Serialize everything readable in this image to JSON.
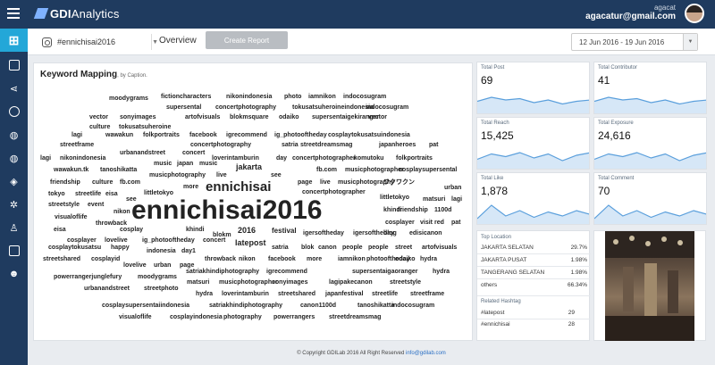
{
  "app": {
    "brand_bold": "GDI",
    "brand_rest": "Analytics"
  },
  "user": {
    "name": "agacat",
    "email": "agacatur@gmail.com"
  },
  "toolbar": {
    "hashtag": "#ennichisai2016",
    "overview": "Overview",
    "create_report": "Create Report",
    "date_range": "12 Jun 2016 - 19 Jun 2016"
  },
  "cloud": {
    "title": "Keyword Mapping",
    "subtitle": "by Caption",
    "words": [
      {
        "t": "moodygrams",
        "s": 7
      },
      {
        "t": "fictioncharacters",
        "s": 7
      },
      {
        "t": "nikonindonesia",
        "s": 7
      },
      {
        "t": "photo",
        "s": 7
      },
      {
        "t": "iamnikon",
        "s": 7
      },
      {
        "t": "indocosugram",
        "s": 7
      },
      {
        "t": "supersental",
        "s": 7
      },
      {
        "t": "concertphotography",
        "s": 7
      },
      {
        "t": "tokusatsuheroineindonesia",
        "s": 7
      },
      {
        "t": "indocosugram",
        "s": 7
      },
      {
        "t": "vector",
        "s": 7
      },
      {
        "t": "sonyimages",
        "s": 7
      },
      {
        "t": "artofvisuals",
        "s": 7
      },
      {
        "t": "blokmsquare",
        "s": 7
      },
      {
        "t": "odaiko",
        "s": 7
      },
      {
        "t": "supersentaigekiranger",
        "s": 7
      },
      {
        "t": "vector",
        "s": 7
      },
      {
        "t": "culture",
        "s": 7
      },
      {
        "t": "tokusatsuheroine",
        "s": 7
      },
      {
        "t": "lagi",
        "s": 7
      },
      {
        "t": "wawakun",
        "s": 7
      },
      {
        "t": "folkportraits",
        "s": 7
      },
      {
        "t": "facebook",
        "s": 7
      },
      {
        "t": "igrecommend",
        "s": 7
      },
      {
        "t": "ig_photooftheday",
        "s": 7
      },
      {
        "t": "cosplaytokusatsuindonesia",
        "s": 7
      },
      {
        "t": "streetframe",
        "s": 7
      },
      {
        "t": "concertphotography",
        "s": 7
      },
      {
        "t": "satria",
        "s": 7
      },
      {
        "t": "streetdreamsmag",
        "s": 7
      },
      {
        "t": "japanheroes",
        "s": 7
      },
      {
        "t": "pat",
        "s": 7
      },
      {
        "t": "urbanandstreet",
        "s": 7
      },
      {
        "t": "concert",
        "s": 7
      },
      {
        "t": "lagi",
        "s": 7
      },
      {
        "t": "nikonindonesia",
        "s": 7
      },
      {
        "t": "loverintamburin",
        "s": 7
      },
      {
        "t": "day",
        "s": 7
      },
      {
        "t": "concertphotographer",
        "s": 7
      },
      {
        "t": "komutoku",
        "s": 7
      },
      {
        "t": "folkportraits",
        "s": 7
      },
      {
        "t": "music",
        "s": 7
      },
      {
        "t": "japan",
        "s": 7
      },
      {
        "t": "music",
        "s": 7
      },
      {
        "t": "wawakun.tk",
        "s": 7
      },
      {
        "t": "tanoshikatta",
        "s": 7
      },
      {
        "t": "jakarta",
        "s": 9
      },
      {
        "t": "fb.com",
        "s": 7
      },
      {
        "t": "musicphotographer",
        "s": 7
      },
      {
        "t": "cosplaysupersental",
        "s": 7
      },
      {
        "t": "musicphotography",
        "s": 7
      },
      {
        "t": "live",
        "s": 7
      },
      {
        "t": "see",
        "s": 7
      },
      {
        "t": "friendship",
        "s": 7
      },
      {
        "t": "culture",
        "s": 7
      },
      {
        "t": "fb.com",
        "s": 7
      },
      {
        "t": "page",
        "s": 7
      },
      {
        "t": "live",
        "s": 7
      },
      {
        "t": "musicphotography",
        "s": 7
      },
      {
        "t": "ワクワクン",
        "s": 7
      },
      {
        "t": "more",
        "s": 7
      },
      {
        "t": "ennichisai",
        "s": 15
      },
      {
        "t": "urban",
        "s": 7
      },
      {
        "t": "tokyo",
        "s": 7
      },
      {
        "t": "streetlife",
        "s": 7
      },
      {
        "t": "eisa",
        "s": 7
      },
      {
        "t": "littletokyo",
        "s": 7
      },
      {
        "t": "concertphotographer",
        "s": 7
      },
      {
        "t": "littletokyo",
        "s": 7
      },
      {
        "t": "matsuri",
        "s": 7
      },
      {
        "t": "lagi",
        "s": 7
      },
      {
        "t": "see",
        "s": 7
      },
      {
        "t": "streetstyle",
        "s": 7
      },
      {
        "t": "event",
        "s": 7
      },
      {
        "t": "khindi",
        "s": 7
      },
      {
        "t": "friendship",
        "s": 7
      },
      {
        "t": "1100d",
        "s": 7
      },
      {
        "t": "nikon",
        "s": 7
      },
      {
        "t": "ennichisai2016",
        "s": 30
      },
      {
        "t": "visualoflife",
        "s": 7
      },
      {
        "t": "cosplayer",
        "s": 7
      },
      {
        "t": "visit",
        "s": 7
      },
      {
        "t": "red",
        "s": 7
      },
      {
        "t": "pat",
        "s": 7
      },
      {
        "t": "throwback",
        "s": 7
      },
      {
        "t": "eisa",
        "s": 7
      },
      {
        "t": "cosplay",
        "s": 7
      },
      {
        "t": "khindi",
        "s": 7
      },
      {
        "t": "blokm",
        "s": 7
      },
      {
        "t": "2016",
        "s": 9
      },
      {
        "t": "festival",
        "s": 8
      },
      {
        "t": "igersoftheday",
        "s": 7
      },
      {
        "t": "igersoftheday",
        "s": 7
      },
      {
        "t": "blog",
        "s": 7
      },
      {
        "t": "edisicanon",
        "s": 7
      },
      {
        "t": "cosplayer",
        "s": 7
      },
      {
        "t": "lovelive",
        "s": 7
      },
      {
        "t": "ig_photooftheday",
        "s": 7
      },
      {
        "t": "concert",
        "s": 7
      },
      {
        "t": "latepost",
        "s": 9
      },
      {
        "t": "satria",
        "s": 7
      },
      {
        "t": "blok",
        "s": 7
      },
      {
        "t": "canon",
        "s": 7
      },
      {
        "t": "people",
        "s": 7
      },
      {
        "t": "people",
        "s": 7
      },
      {
        "t": "street",
        "s": 7
      },
      {
        "t": "artofvisuals",
        "s": 7
      },
      {
        "t": "cosplaytokusatsu",
        "s": 7
      },
      {
        "t": "happy",
        "s": 7
      },
      {
        "t": "indonesia",
        "s": 7
      },
      {
        "t": "day1",
        "s": 7
      },
      {
        "t": "streetshared",
        "s": 7
      },
      {
        "t": "cosplayid",
        "s": 7
      },
      {
        "t": "throwback",
        "s": 7
      },
      {
        "t": "nikon",
        "s": 7
      },
      {
        "t": "facebook",
        "s": 7
      },
      {
        "t": "more",
        "s": 7
      },
      {
        "t": "iamnikon",
        "s": 7
      },
      {
        "t": "photooftheday",
        "s": 7
      },
      {
        "t": "odaiko",
        "s": 7
      },
      {
        "t": "hydra",
        "s": 7
      },
      {
        "t": "lovelive",
        "s": 7
      },
      {
        "t": "urban",
        "s": 7
      },
      {
        "t": "page",
        "s": 7
      },
      {
        "t": "satriakhindiphotography",
        "s": 7
      },
      {
        "t": "igrecommend",
        "s": 7
      },
      {
        "t": "supersentaigaoranger",
        "s": 7
      },
      {
        "t": "hydra",
        "s": 7
      },
      {
        "t": "powerrangerjunglefury",
        "s": 7
      },
      {
        "t": "moodygrams",
        "s": 7
      },
      {
        "t": "matsuri",
        "s": 7
      },
      {
        "t": "musicphotographer",
        "s": 7
      },
      {
        "t": "sonyimages",
        "s": 7
      },
      {
        "t": "lagipakecanon",
        "s": 7
      },
      {
        "t": "streetstyle",
        "s": 7
      },
      {
        "t": "urbanandstreet",
        "s": 7
      },
      {
        "t": "streetphoto",
        "s": 7
      },
      {
        "t": "hydra",
        "s": 7
      },
      {
        "t": "loverintamburin",
        "s": 7
      },
      {
        "t": "streetshared",
        "s": 7
      },
      {
        "t": "japanfestival",
        "s": 7
      },
      {
        "t": "streetlife",
        "s": 7
      },
      {
        "t": "streetframe",
        "s": 7
      },
      {
        "t": "cosplaysupersentaiindonesia",
        "s": 7
      },
      {
        "t": "satriakhindiphotography",
        "s": 7
      },
      {
        "t": "canon1100d",
        "s": 7
      },
      {
        "t": "tanoshikatta",
        "s": 7
      },
      {
        "t": "indocosugram",
        "s": 7
      },
      {
        "t": "visualoflife",
        "s": 7
      },
      {
        "t": "cosplayindonesia",
        "s": 7
      },
      {
        "t": "photography",
        "s": 7
      },
      {
        "t": "powerrangers",
        "s": 7
      },
      {
        "t": "streetdreamsmag",
        "s": 7
      }
    ]
  },
  "stats": [
    {
      "label": "Total Post",
      "value": "69",
      "spark": [
        0.45,
        0.6,
        0.5,
        0.55,
        0.4,
        0.5,
        0.35,
        0.45,
        0.5
      ]
    },
    {
      "label": "Total Contributor",
      "value": "41",
      "spark": [
        0.45,
        0.6,
        0.5,
        0.55,
        0.4,
        0.5,
        0.35,
        0.45,
        0.5
      ]
    },
    {
      "label": "Total Reach",
      "value": "15,425",
      "spark": [
        0.35,
        0.55,
        0.45,
        0.6,
        0.4,
        0.55,
        0.3,
        0.5,
        0.6
      ]
    },
    {
      "label": "Total Exposure",
      "value": "24,616",
      "spark": [
        0.35,
        0.55,
        0.45,
        0.6,
        0.4,
        0.55,
        0.3,
        0.5,
        0.6
      ]
    },
    {
      "label": "Total Like",
      "value": "1,878",
      "spark": [
        0.2,
        0.7,
        0.3,
        0.5,
        0.25,
        0.45,
        0.3,
        0.5,
        0.35
      ]
    },
    {
      "label": "Total Comment",
      "value": "70",
      "spark": [
        0.2,
        0.7,
        0.3,
        0.5,
        0.25,
        0.45,
        0.3,
        0.5,
        0.35
      ]
    }
  ],
  "top_location": {
    "label": "Top Location",
    "rows": [
      {
        "name": "JAKARTA SELATAN",
        "pct": "29.7%"
      },
      {
        "name": "JAKARTA PUSAT",
        "pct": "1.98%"
      },
      {
        "name": "TANGERANG SELATAN",
        "pct": "1.98%"
      },
      {
        "name": "others",
        "pct": "66.34%"
      }
    ]
  },
  "related_hashtag": {
    "label": "Related Hashtag",
    "rows": [
      {
        "name": "#latepost",
        "count": "29"
      },
      {
        "name": "#ennichisai",
        "count": "28"
      }
    ]
  },
  "footer": {
    "text": "© Copyright GDILab 2016 All Right Reserved",
    "email": "info@gdilab.com"
  },
  "colors": {
    "nav": "#1f3b5f",
    "accent": "#23a7d8",
    "spark_fill": "#d6e7f7",
    "spark_line": "#5a9fdc"
  },
  "sidebar_icons": [
    "add-icon",
    "list-icon",
    "share-icon",
    "instagram-icon",
    "globe-icon",
    "globe-icon",
    "tag-icon",
    "settings-icon",
    "person-icon",
    "chart-icon",
    "avatar-icon"
  ]
}
